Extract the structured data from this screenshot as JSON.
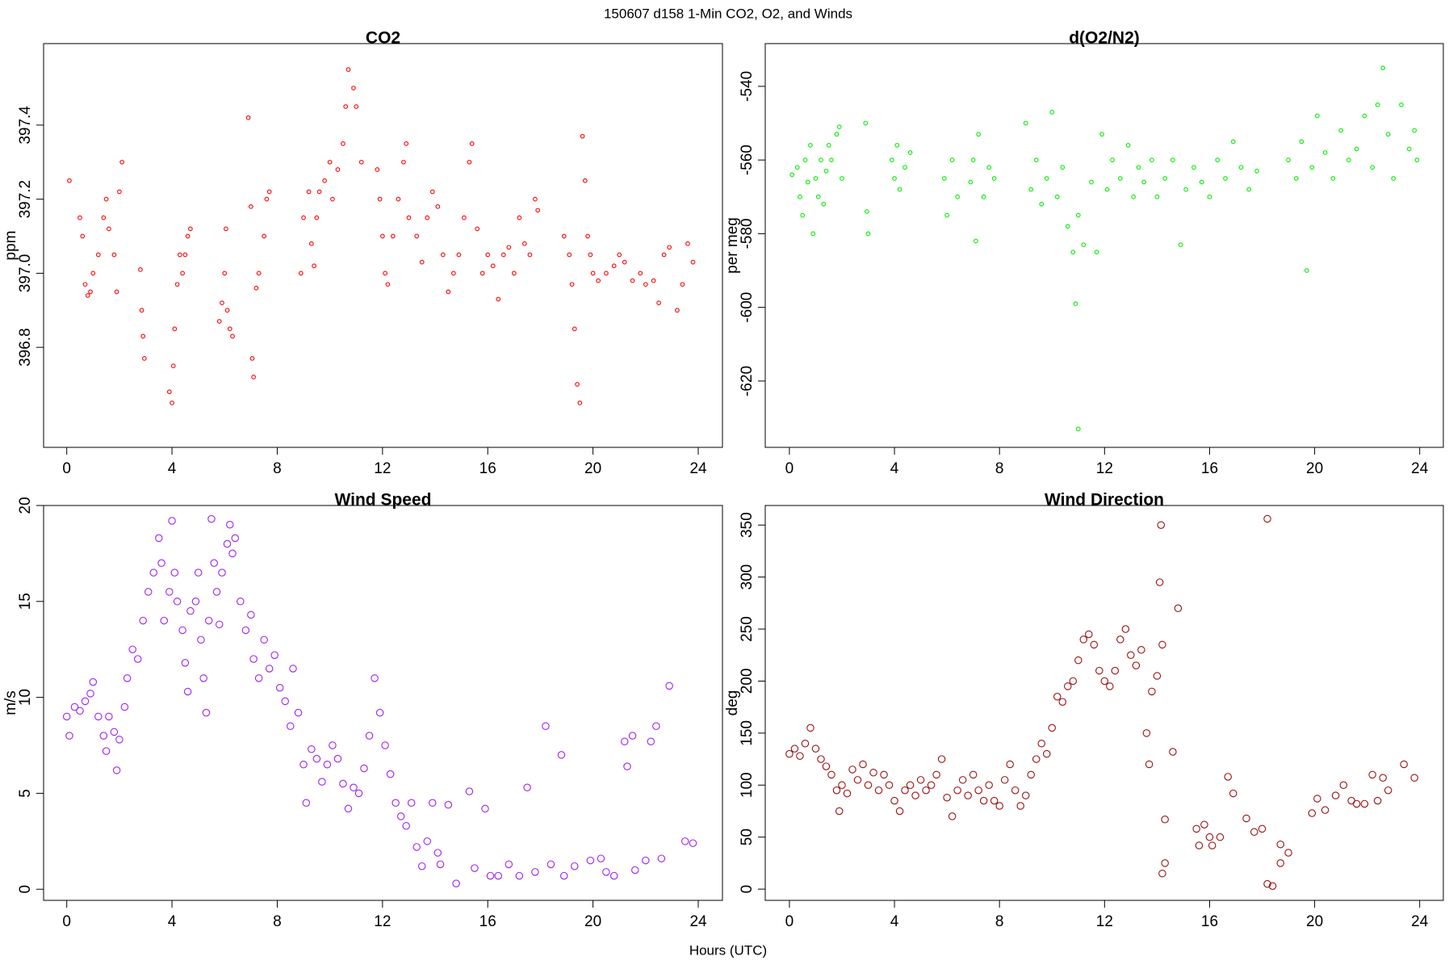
{
  "title": "150607   d158   1-Min CO2, O2, and Winds",
  "x_label": "Hours (UTC)",
  "chart_data": [
    {
      "type": "scatter",
      "title": "CO2",
      "y_label": "ppm",
      "color": "#ff0000",
      "marker_size": 2.3,
      "xlim": [
        -0.88,
        24.92
      ],
      "ylim": [
        396.53,
        397.62
      ],
      "xticks": [
        0,
        4,
        8,
        12,
        16,
        20,
        24
      ],
      "yticks": [
        396.8,
        {
          "value": 397,
          "label": "397.0"
        },
        397.2,
        397.4
      ],
      "x": [
        0.1,
        0.5,
        0.6,
        0.7,
        0.8,
        0.9,
        1.0,
        1.2,
        1.4,
        1.5,
        1.6,
        1.8,
        1.9,
        2.0,
        2.1,
        2.8,
        2.85,
        2.9,
        2.95,
        3.9,
        4.0,
        4.05,
        4.1,
        4.2,
        4.3,
        4.4,
        4.5,
        4.6,
        4.7,
        5.8,
        5.9,
        6.0,
        6.05,
        6.1,
        6.2,
        6.3,
        6.9,
        7.0,
        7.05,
        7.1,
        7.2,
        7.3,
        7.5,
        7.6,
        7.7,
        8.9,
        9.0,
        9.2,
        9.3,
        9.4,
        9.5,
        9.6,
        9.8,
        10.0,
        10.1,
        10.3,
        10.5,
        10.6,
        10.7,
        10.9,
        11.0,
        11.2,
        11.8,
        11.9,
        12.0,
        12.1,
        12.2,
        12.4,
        12.6,
        12.8,
        12.9,
        13.0,
        13.3,
        13.5,
        13.7,
        13.9,
        14.1,
        14.3,
        14.5,
        14.7,
        14.9,
        15.1,
        15.3,
        15.4,
        15.6,
        15.8,
        16.0,
        16.2,
        16.4,
        16.6,
        16.8,
        17.0,
        17.2,
        17.4,
        17.6,
        17.8,
        17.9,
        18.9,
        19.1,
        19.2,
        19.3,
        19.4,
        19.5,
        19.6,
        19.7,
        19.8,
        19.9,
        20.0,
        20.2,
        20.5,
        20.8,
        21.0,
        21.2,
        21.5,
        21.8,
        22.0,
        22.3,
        22.5,
        22.7,
        22.9,
        23.2,
        23.4,
        23.6,
        23.8
      ],
      "values": [
        397.25,
        397.15,
        397.1,
        396.97,
        396.94,
        396.95,
        397.0,
        397.05,
        397.15,
        397.2,
        397.12,
        397.05,
        396.95,
        397.22,
        397.3,
        397.01,
        396.9,
        396.83,
        396.77,
        396.68,
        396.65,
        396.75,
        396.85,
        396.97,
        397.05,
        397.0,
        397.05,
        397.1,
        397.12,
        396.87,
        396.92,
        397.0,
        397.12,
        396.9,
        396.85,
        396.83,
        397.42,
        397.18,
        396.77,
        396.72,
        396.96,
        397.0,
        397.1,
        397.2,
        397.22,
        397.0,
        397.15,
        397.22,
        397.08,
        397.02,
        397.15,
        397.22,
        397.25,
        397.3,
        397.2,
        397.28,
        397.35,
        397.45,
        397.55,
        397.5,
        397.45,
        397.3,
        397.28,
        397.2,
        397.1,
        397.0,
        396.97,
        397.1,
        397.2,
        397.3,
        397.35,
        397.15,
        397.1,
        397.03,
        397.15,
        397.22,
        397.18,
        397.05,
        396.95,
        397.0,
        397.05,
        397.15,
        397.3,
        397.35,
        397.12,
        397.0,
        397.05,
        397.02,
        396.93,
        397.05,
        397.07,
        397.0,
        397.15,
        397.08,
        397.05,
        397.2,
        397.17,
        397.1,
        397.05,
        396.97,
        396.85,
        396.7,
        396.65,
        397.37,
        397.25,
        397.1,
        397.05,
        397.0,
        396.98,
        397.0,
        397.02,
        397.05,
        397.03,
        396.98,
        397.0,
        396.97,
        396.98,
        396.92,
        397.05,
        397.07,
        396.9,
        396.97,
        397.08,
        397.03
      ]
    },
    {
      "type": "scatter",
      "title": "d(O2/N2)",
      "y_label": "per meg",
      "color": "#00ee00",
      "marker_size": 2.3,
      "xlim": [
        -0.92,
        24.9
      ],
      "ylim": [
        -638,
        -528.4
      ],
      "xticks": [
        0,
        4,
        8,
        12,
        16,
        20,
        24
      ],
      "yticks": [
        -620,
        -600,
        -580,
        -560,
        -540
      ],
      "x": [
        0.1,
        0.3,
        0.4,
        0.5,
        0.6,
        0.7,
        0.8,
        0.9,
        1.0,
        1.1,
        1.2,
        1.3,
        1.4,
        1.5,
        1.6,
        1.8,
        1.9,
        2.0,
        2.9,
        2.95,
        3.0,
        3.9,
        4.0,
        4.1,
        4.2,
        4.4,
        4.6,
        5.9,
        6.0,
        6.2,
        6.4,
        6.9,
        7.0,
        7.1,
        7.2,
        7.4,
        7.6,
        7.8,
        9.0,
        9.2,
        9.4,
        9.6,
        9.8,
        10.0,
        10.2,
        10.4,
        10.6,
        10.8,
        10.9,
        11.0,
        11.0,
        11.2,
        11.5,
        11.7,
        11.9,
        12.1,
        12.3,
        12.6,
        12.9,
        13.1,
        13.3,
        13.5,
        13.8,
        14.0,
        14.3,
        14.6,
        14.9,
        15.1,
        15.4,
        15.7,
        16.0,
        16.3,
        16.6,
        16.9,
        17.2,
        17.5,
        17.8,
        19.0,
        19.3,
        19.5,
        19.7,
        19.9,
        20.1,
        20.4,
        20.7,
        21.0,
        21.3,
        21.6,
        21.9,
        22.2,
        22.4,
        22.6,
        22.8,
        23.0,
        23.3,
        23.6,
        23.8,
        23.9
      ],
      "values": [
        -564,
        -562,
        -570,
        -575,
        -560,
        -566,
        -556,
        -580,
        -565,
        -570,
        -560,
        -572,
        -563,
        -556,
        -560,
        -553,
        -551,
        -565,
        -550,
        -574,
        -580,
        -560,
        -565,
        -556,
        -568,
        -562,
        -558,
        -565,
        -575,
        -560,
        -570,
        -566,
        -560,
        -582,
        -553,
        -570,
        -562,
        -565,
        -550,
        -568,
        -560,
        -572,
        -565,
        -547,
        -570,
        -562,
        -578,
        -585,
        -599,
        -575,
        -633,
        -583,
        -566,
        -585,
        -553,
        -568,
        -560,
        -565,
        -556,
        -570,
        -562,
        -566,
        -560,
        -570,
        -565,
        -560,
        -583,
        -568,
        -562,
        -566,
        -570,
        -560,
        -565,
        -555,
        -562,
        -568,
        -563,
        -560,
        -565,
        -555,
        -590,
        -562,
        -548,
        -558,
        -565,
        -552,
        -560,
        -557,
        -548,
        -562,
        -545,
        -535,
        -553,
        -565,
        -545,
        -557,
        -552,
        -560
      ]
    },
    {
      "type": "scatter",
      "title": "Wind Speed",
      "y_label": "m/s",
      "color": "#a020f0",
      "marker_size": 4.2,
      "xlim": [
        -0.88,
        24.92
      ],
      "ylim": [
        -0.58,
        20.0
      ],
      "xticks": [
        0,
        4,
        8,
        12,
        16,
        20,
        24
      ],
      "yticks": [
        0,
        5,
        10,
        15,
        20
      ],
      "x": [
        0.0,
        0.1,
        0.3,
        0.5,
        0.7,
        0.9,
        1.0,
        1.2,
        1.4,
        1.5,
        1.6,
        1.8,
        1.9,
        2.0,
        2.2,
        2.3,
        2.5,
        2.7,
        2.9,
        3.1,
        3.3,
        3.5,
        3.6,
        3.7,
        3.9,
        4.0,
        4.1,
        4.2,
        4.4,
        4.5,
        4.6,
        4.7,
        4.9,
        5.0,
        5.1,
        5.2,
        5.3,
        5.4,
        5.5,
        5.6,
        5.7,
        5.8,
        5.9,
        6.1,
        6.2,
        6.3,
        6.4,
        6.6,
        6.8,
        7.0,
        7.1,
        7.3,
        7.5,
        7.7,
        7.9,
        8.1,
        8.3,
        8.5,
        8.6,
        8.8,
        9.0,
        9.1,
        9.3,
        9.5,
        9.7,
        9.9,
        10.1,
        10.3,
        10.5,
        10.7,
        10.9,
        11.1,
        11.3,
        11.5,
        11.7,
        11.9,
        12.1,
        12.3,
        12.5,
        12.7,
        12.9,
        13.1,
        13.3,
        13.5,
        13.7,
        13.9,
        14.1,
        14.2,
        14.5,
        14.8,
        15.3,
        15.5,
        15.9,
        16.1,
        16.4,
        16.8,
        17.2,
        17.5,
        17.8,
        18.2,
        18.4,
        18.8,
        18.9,
        19.3,
        19.9,
        20.3,
        20.5,
        20.8,
        21.2,
        21.3,
        21.5,
        21.6,
        22.0,
        22.2,
        22.4,
        22.6,
        22.9,
        23.5,
        23.8
      ],
      "values": [
        9,
        8,
        9.5,
        9.3,
        9.8,
        10.2,
        10.8,
        9,
        8,
        7.2,
        9,
        8.2,
        6.2,
        7.8,
        9.5,
        11,
        12.5,
        12,
        14,
        15.5,
        16.5,
        18.3,
        17,
        14,
        15.5,
        19.2,
        16.5,
        15,
        13.5,
        11.8,
        10.3,
        14.5,
        15,
        16.5,
        13,
        11,
        9.2,
        14,
        19.3,
        17,
        15.5,
        13.8,
        16.5,
        18,
        19,
        17.5,
        18.3,
        15,
        13.5,
        14.3,
        12,
        11,
        13,
        11.5,
        12.2,
        10.5,
        9.8,
        8.5,
        11.5,
        9.2,
        6.5,
        4.5,
        7.3,
        6.8,
        5.6,
        6.5,
        7.5,
        6.8,
        5.5,
        4.2,
        5.3,
        5,
        6.3,
        8,
        11,
        9.2,
        7.5,
        6,
        4.5,
        3.8,
        3.3,
        4.5,
        2.2,
        1.2,
        2.5,
        4.5,
        1.9,
        1.3,
        4.4,
        0.3,
        5.1,
        1.1,
        4.2,
        0.7,
        0.7,
        1.3,
        0.7,
        5.3,
        0.9,
        8.5,
        1.3,
        7,
        0.7,
        1.2,
        1.5,
        1.6,
        0.9,
        0.7,
        7.7,
        6.4,
        8,
        1,
        1.5,
        7.7,
        8.5,
        1.6,
        10.6,
        2.5,
        2.4
      ]
    },
    {
      "type": "scatter",
      "title": "Wind Direction",
      "y_label": "deg",
      "color": "#9b1010",
      "marker_size": 4.2,
      "xlim": [
        -0.92,
        24.9
      ],
      "ylim": [
        -10.8,
        368.8
      ],
      "xticks": [
        0,
        4,
        8,
        12,
        16,
        20,
        24
      ],
      "yticks": [
        0,
        50,
        100,
        150,
        200,
        250,
        300,
        350
      ],
      "x": [
        0.0,
        0.2,
        0.4,
        0.6,
        0.8,
        1.0,
        1.2,
        1.4,
        1.6,
        1.8,
        1.9,
        2.0,
        2.2,
        2.4,
        2.6,
        2.8,
        3.0,
        3.2,
        3.4,
        3.6,
        3.8,
        4.0,
        4.2,
        4.4,
        4.6,
        4.8,
        5.0,
        5.2,
        5.4,
        5.6,
        5.8,
        6.0,
        6.2,
        6.4,
        6.6,
        6.8,
        7.0,
        7.2,
        7.4,
        7.6,
        7.8,
        8.0,
        8.2,
        8.4,
        8.6,
        8.8,
        9.0,
        9.2,
        9.4,
        9.6,
        9.8,
        10.0,
        10.2,
        10.4,
        10.6,
        10.8,
        11.0,
        11.2,
        11.4,
        11.6,
        11.8,
        12.0,
        12.2,
        12.4,
        12.6,
        12.8,
        13.0,
        13.2,
        13.4,
        13.6,
        13.7,
        13.8,
        14.0,
        14.2,
        14.15,
        14.1,
        14.2,
        14.3,
        14.3,
        14.6,
        14.8,
        15.5,
        15.6,
        15.8,
        16.0,
        16.1,
        16.4,
        16.7,
        16.9,
        17.4,
        17.7,
        18.0,
        18.2,
        18.2,
        18.4,
        18.7,
        18.7,
        19.0,
        19.9,
        20.1,
        20.4,
        20.8,
        21.1,
        21.4,
        21.6,
        21.9,
        22.2,
        22.4,
        22.6,
        22.8,
        23.4,
        23.8
      ],
      "values": [
        130,
        135,
        128,
        140,
        155,
        135,
        125,
        118,
        110,
        95,
        75,
        100,
        92,
        115,
        105,
        120,
        100,
        112,
        95,
        110,
        100,
        85,
        75,
        95,
        100,
        90,
        105,
        95,
        100,
        110,
        125,
        88,
        70,
        95,
        105,
        90,
        110,
        95,
        85,
        100,
        85,
        80,
        105,
        120,
        95,
        80,
        90,
        110,
        125,
        140,
        130,
        155,
        185,
        180,
        195,
        200,
        220,
        240,
        245,
        235,
        210,
        200,
        195,
        210,
        240,
        250,
        225,
        215,
        230,
        150,
        120,
        190,
        205,
        235,
        350,
        295,
        15,
        25,
        67,
        132,
        270,
        58,
        42,
        62,
        50,
        42,
        50,
        108,
        92,
        68,
        55,
        58,
        356,
        5,
        3,
        43,
        25,
        35,
        73,
        87,
        76,
        90,
        100,
        85,
        82,
        82,
        110,
        85,
        107,
        95,
        120,
        107
      ]
    }
  ]
}
